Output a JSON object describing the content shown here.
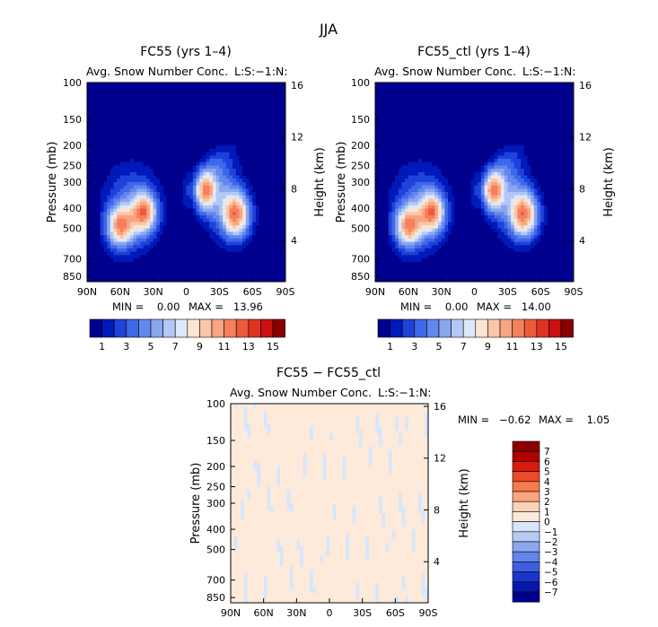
{
  "figure_title": "JJA",
  "chart_data": [
    {
      "type": "heatmap",
      "title": "FC55 (yrs 1–4)",
      "subtitle": "Avg. Snow Number Conc.",
      "tag": "L:S:−1:N:",
      "xlabel": "",
      "ylabel": "Pressure (mb)",
      "ylabel_right": "Height (km)",
      "x_ticks": [
        "90N",
        "60N",
        "30N",
        "0",
        "30S",
        "60S",
        "90S"
      ],
      "y_ticks": [
        "100",
        "150",
        "200",
        "250",
        "300",
        "400",
        "500",
        "700",
        "850"
      ],
      "y_ticks_right": [
        "16",
        "12",
        "8",
        "4"
      ],
      "min_label": "MIN =    0.00",
      "max_label": "MAX =   13.96",
      "min": 0.0,
      "max": 13.96,
      "colorbar_labels": [
        "1",
        "3",
        "5",
        "7",
        "9",
        "11",
        "13",
        "15"
      ],
      "peaks": [
        {
          "lat": -13,
          "p": 330,
          "value": 13.96
        },
        {
          "lat": -45,
          "p": 430,
          "value": 11
        },
        {
          "lat": 38,
          "p": 420,
          "value": 9
        },
        {
          "lat": 60,
          "p": 490,
          "value": 9
        }
      ]
    },
    {
      "type": "heatmap",
      "title": "FC55_ctl (yrs 1–4)",
      "subtitle": "Avg. Snow Number Conc.",
      "tag": "L:S:−1:N:",
      "xlabel": "",
      "ylabel": "Pressure (mb)",
      "ylabel_right": "Height (km)",
      "x_ticks": [
        "90N",
        "60N",
        "30N",
        "0",
        "30S",
        "60S",
        "90S"
      ],
      "y_ticks": [
        "100",
        "150",
        "200",
        "250",
        "300",
        "400",
        "500",
        "700",
        "850"
      ],
      "y_ticks_right": [
        "16",
        "12",
        "8",
        "4"
      ],
      "min_label": "MIN =    0.00",
      "max_label": "MAX =   14.00",
      "min": 0.0,
      "max": 14.0,
      "colorbar_labels": [
        "1",
        "3",
        "5",
        "7",
        "9",
        "11",
        "13",
        "15"
      ],
      "peaks": [
        {
          "lat": -13,
          "p": 330,
          "value": 14.0
        },
        {
          "lat": -45,
          "p": 430,
          "value": 11
        },
        {
          "lat": 38,
          "p": 420,
          "value": 9
        },
        {
          "lat": 60,
          "p": 490,
          "value": 9
        }
      ]
    },
    {
      "type": "heatmap",
      "title": "FC55 − FC55_ctl",
      "subtitle": "Avg. Snow Number Conc.",
      "tag": "L:S:−1:N:",
      "xlabel": "",
      "ylabel": "Pressure (mb)",
      "ylabel_right": "Height (km)",
      "x_ticks": [
        "90N",
        "60N",
        "30N",
        "0",
        "30S",
        "60S",
        "90S"
      ],
      "y_ticks": [
        "100",
        "150",
        "200",
        "250",
        "300",
        "400",
        "500",
        "700",
        "850"
      ],
      "y_ticks_right": [
        "16",
        "12",
        "8",
        "4"
      ],
      "min_label": "MIN =   −0.62",
      "max_label": "MAX =    1.05",
      "min": -0.62,
      "max": 1.05,
      "colorbar_labels": [
        "7",
        "6",
        "5",
        "4",
        "3",
        "2",
        "1",
        "0",
        "−1",
        "−2",
        "−3",
        "−4",
        "−5",
        "−6",
        "−7"
      ]
    }
  ],
  "colors": {
    "seq": [
      "#00008f",
      "#0019b9",
      "#1f42d9",
      "#3f68e9",
      "#6388ed",
      "#8ba6ef",
      "#b4c8f5",
      "#dde8fb",
      "#fde4d2",
      "#fbc6a8",
      "#f8a583",
      "#f4815e",
      "#ec5a3c",
      "#df3322",
      "#c81210",
      "#8a0000"
    ],
    "diff": [
      "#8a0000",
      "#b00000",
      "#d81b10",
      "#ea4a28",
      "#f67a4e",
      "#fba57e",
      "#fdd2b6",
      "#fdeadb",
      "#d7e6fb",
      "#b5cbf6",
      "#8ba8ef",
      "#6285ea",
      "#3d5ee3",
      "#1c34cd",
      "#0818a8",
      "#00008f"
    ]
  }
}
